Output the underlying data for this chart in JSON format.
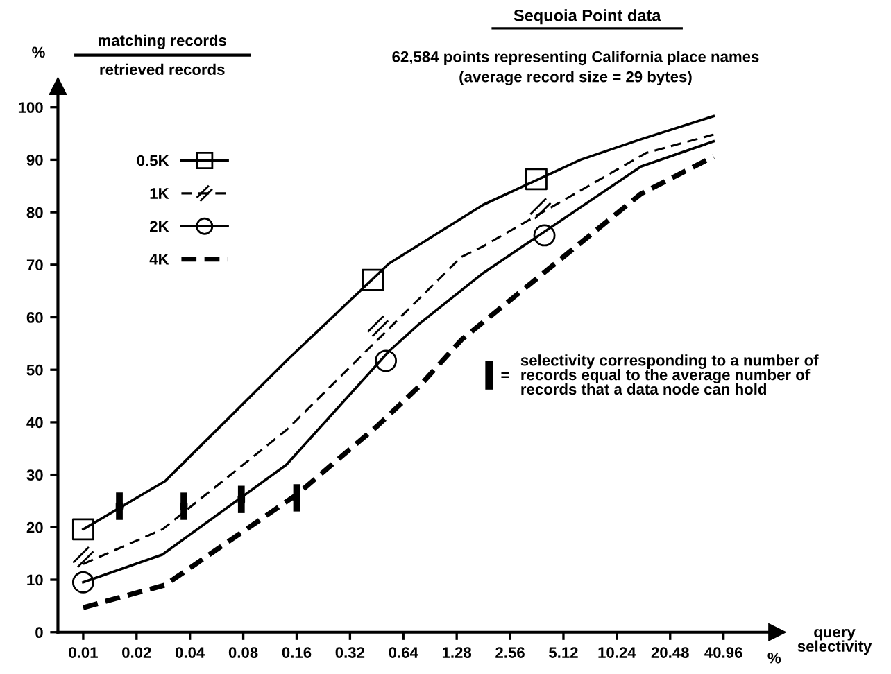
{
  "chart_data": {
    "type": "line",
    "title": "Sequoia Point data",
    "subtitle": "62,584 points representing California place names\n(average record size = 29 bytes)",
    "xlabel": "query\nselectivity",
    "ylabel": "%",
    "annotations": [
      "matching records",
      "retrieved records",
      "%",
      "selectivity corresponding to a number of\nrecords equal to the average number of\nrecords that a data node can hold",
      "="
    ],
    "log": "x",
    "xlim": [
      0.0072,
      82
    ],
    "xticks": [
      0.01,
      0.02,
      0.04,
      0.08,
      0.16,
      0.32,
      0.64,
      1.28,
      2.56,
      5.12,
      10.24,
      20.48,
      40.96
    ],
    "ylim": [
      0,
      104
    ],
    "yticks": [
      0,
      10,
      20,
      30,
      40,
      50,
      60,
      70,
      80,
      90,
      100
    ],
    "grid": false,
    "legend": "top left",
    "series": [
      {
        "name": "0.5K",
        "color": "#000000",
        "line_style": "solid",
        "x": [
          0.01,
          0.029,
          0.14,
          0.53,
          1.8,
          6.4,
          14,
          36
        ],
        "values": [
          19.6,
          28.8,
          51.7,
          70.2,
          81.4,
          90.0,
          93.9,
          98.3
        ]
      },
      {
        "name": "1K",
        "color": "#000000",
        "line_style": "dashed",
        "x": [
          0.01,
          0.028,
          0.14,
          1.36,
          1.8,
          15,
          36
        ],
        "values": [
          13.0,
          19.6,
          38.5,
          71.5,
          73.5,
          91.3,
          94.8
        ]
      },
      {
        "name": "2K",
        "color": "#000000",
        "line_style": "solid",
        "x": [
          0.01,
          0.028,
          0.14,
          0.53,
          0.79,
          1.8,
          14,
          36
        ],
        "values": [
          9.5,
          14.8,
          31.9,
          53.5,
          58.8,
          68.4,
          88.7,
          93.5
        ]
      },
      {
        "name": "4K",
        "color": "#000000",
        "line_style": "dashed",
        "x": [
          0.01,
          0.029,
          0.16,
          0.46,
          0.79,
          1.36,
          14,
          36
        ],
        "values": [
          4.7,
          9.0,
          26.2,
          39.4,
          46.9,
          55.7,
          83.5,
          90.6
        ]
      },
      {
        "type": "scatter",
        "color": "#000000",
        "marker": "square",
        "x": [
          0.01,
          0.43,
          3.6
        ],
        "values": [
          19.6,
          67.1,
          86.3
        ]
      },
      {
        "type": "scatter",
        "color": "#000000",
        "marker": "cross",
        "x": [
          0.01,
          0.46,
          3.8
        ],
        "values": [
          14.3,
          58.3,
          80.7
        ]
      },
      {
        "type": "scatter",
        "color": "#000000",
        "marker": "circle",
        "x": [
          0.01,
          0.51,
          4.0
        ],
        "values": [
          9.5,
          51.7,
          75.6
        ]
      },
      {
        "type": "scatter",
        "color": "#000000",
        "marker": "square",
        "x": [
          0.016,
          0.037,
          0.078,
          0.16
        ],
        "values": [
          24.0,
          24.0,
          25.3,
          25.6
        ],
        "errors": [
          2.6,
          2.6,
          2.6,
          2.6
        ]
      }
    ]
  }
}
